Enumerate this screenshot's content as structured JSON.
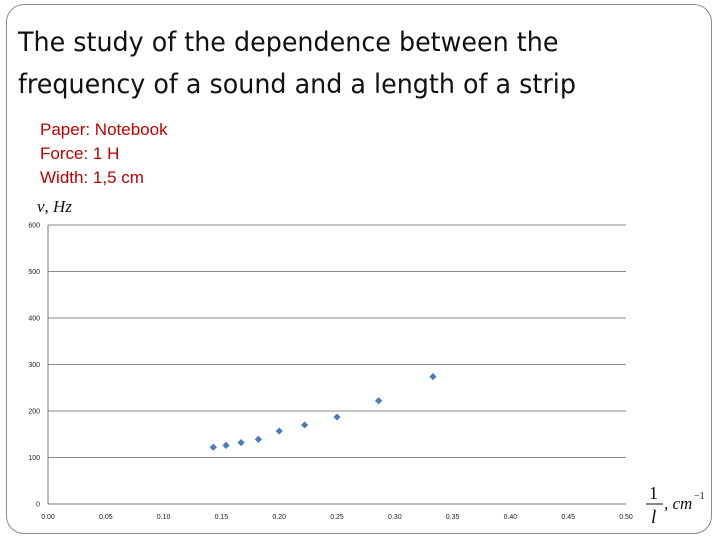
{
  "slide": {
    "title_lines": [
      "The study of the dependence between the",
      "frequency of a sound and a length of a strip"
    ],
    "params": [
      "Paper: Notebook",
      "Force: 1 H",
      "Width: 1,5 cm"
    ]
  },
  "chart_data": {
    "type": "scatter",
    "title": "",
    "ylabel": {
      "symbol": "ν",
      "unit": ", Hz"
    },
    "xlabel": {
      "numerator": "1",
      "denominator": "l",
      "unit": ", cm",
      "exponent": "−1"
    },
    "xlim": [
      0,
      0.5
    ],
    "ylim": [
      0,
      600
    ],
    "x_ticks": [
      "0.00",
      "0.05",
      "0.10",
      "0.15",
      "0.20",
      "0.25",
      "0.30",
      "0.35",
      "0.40",
      "0.45",
      "0.50"
    ],
    "y_ticks": [
      "0",
      "100",
      "200",
      "300",
      "400",
      "500",
      "600"
    ],
    "grid": "horizontal",
    "marker_color": "#4a7ebb",
    "series": [
      {
        "x": [
          0.143,
          0.154,
          0.167,
          0.182,
          0.2,
          0.222,
          0.25,
          0.286,
          0.333
        ],
        "y": [
          122,
          126,
          132,
          139,
          157,
          170,
          187,
          222,
          274
        ]
      }
    ]
  }
}
